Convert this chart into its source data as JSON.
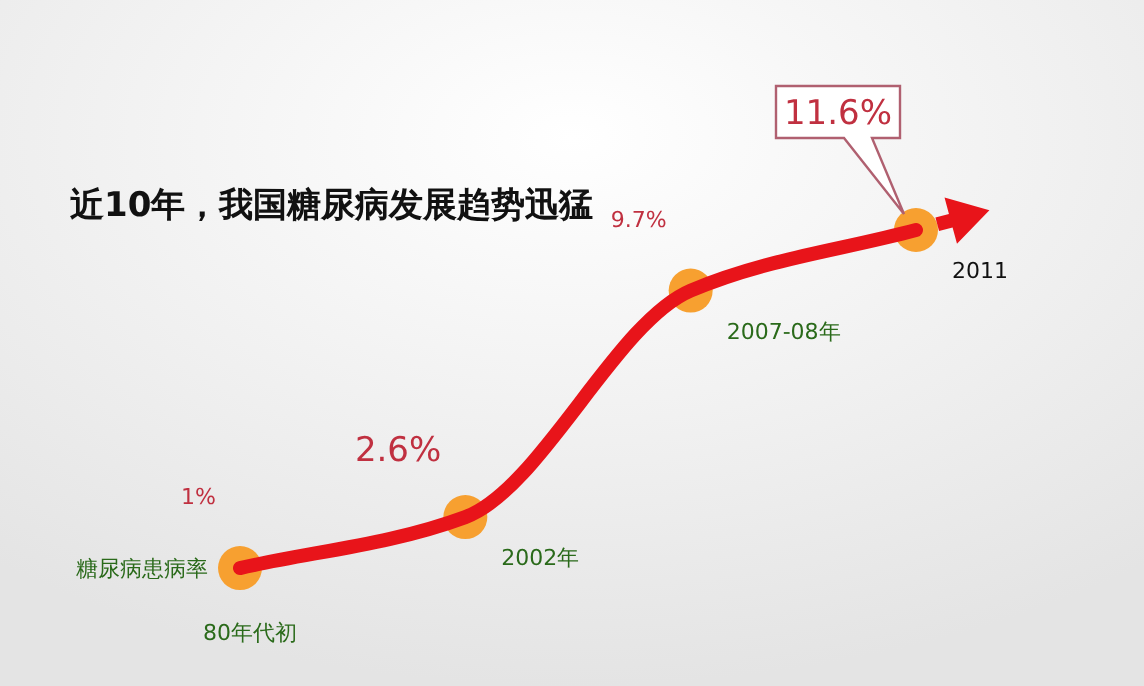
{
  "chart_data": {
    "type": "line",
    "title": "近10年，我国糖尿病发展趋势迅猛",
    "categories": [
      "80年代初",
      "2002年",
      "2007-08年",
      "2011"
    ],
    "series": [
      {
        "name": "糖尿病患病率",
        "color": "#e8141a",
        "values": [
          1,
          2.6,
          9.7,
          11.6
        ],
        "value_labels": [
          "1%",
          "2.6%",
          "9.7%",
          "11.6%"
        ]
      }
    ],
    "marker": "circle",
    "line_style": "solid",
    "grid": false,
    "legend": false
  }
}
